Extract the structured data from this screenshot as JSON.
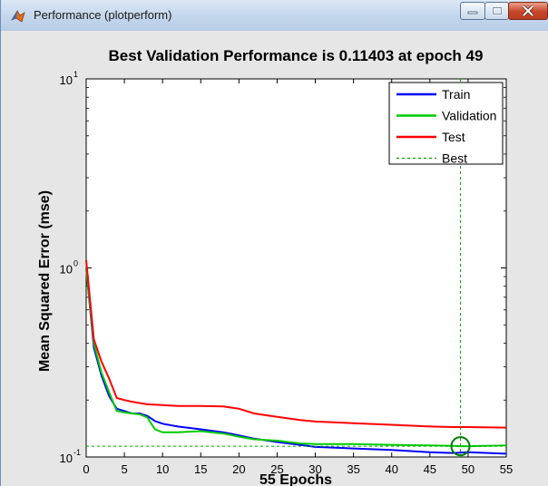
{
  "window": {
    "title": "Performance (plotperform)",
    "icon": "matlab-icon",
    "controls": [
      "minimize-icon",
      "maximize-icon",
      "close-icon"
    ]
  },
  "chart_data": {
    "type": "line",
    "title": "Best Validation Performance is 0.11403 at epoch 49",
    "xlabel": "55 Epochs",
    "ylabel": "Mean Squared Error  (mse)",
    "xlim": [
      0,
      55
    ],
    "ylim": [
      0.1,
      10
    ],
    "yscale": "log",
    "xticks": [
      "0",
      "5",
      "10",
      "15",
      "20",
      "25",
      "30",
      "35",
      "40",
      "45",
      "50",
      "55"
    ],
    "yticks": [
      {
        "base": "10",
        "exp": "-1",
        "value": 0.1
      },
      {
        "base": "10",
        "exp": "0",
        "value": 1
      },
      {
        "base": "10",
        "exp": "1",
        "value": 10
      }
    ],
    "grid": false,
    "legend_position": "top-right",
    "series": [
      {
        "name": "Train",
        "color": "#0000ff",
        "x": [
          0,
          1,
          2,
          3,
          4,
          5,
          6,
          7,
          8,
          9,
          10,
          12,
          15,
          18,
          20,
          22,
          25,
          28,
          30,
          35,
          40,
          45,
          48,
          50,
          55
        ],
        "y": [
          1.0,
          0.38,
          0.27,
          0.21,
          0.18,
          0.175,
          0.17,
          0.17,
          0.165,
          0.155,
          0.15,
          0.145,
          0.14,
          0.135,
          0.13,
          0.125,
          0.12,
          0.116,
          0.113,
          0.111,
          0.109,
          0.106,
          0.105,
          0.106,
          0.104
        ]
      },
      {
        "name": "Validation",
        "color": "#00cc00",
        "x": [
          0,
          1,
          2,
          3,
          4,
          5,
          6,
          7,
          8,
          9,
          10,
          12,
          15,
          18,
          20,
          22,
          25,
          28,
          30,
          35,
          40,
          45,
          48,
          49,
          50,
          55
        ],
        "y": [
          1.0,
          0.4,
          0.28,
          0.22,
          0.175,
          0.172,
          0.17,
          0.168,
          0.162,
          0.14,
          0.135,
          0.135,
          0.137,
          0.133,
          0.128,
          0.124,
          0.122,
          0.118,
          0.117,
          0.117,
          0.116,
          0.115,
          0.1145,
          0.11403,
          0.114,
          0.115
        ]
      },
      {
        "name": "Test",
        "color": "#ff0000",
        "x": [
          0,
          1,
          2,
          3,
          4,
          5,
          6,
          8,
          10,
          12,
          15,
          18,
          20,
          22,
          25,
          28,
          30,
          35,
          40,
          45,
          48,
          50,
          55
        ],
        "y": [
          1.1,
          0.42,
          0.32,
          0.26,
          0.205,
          0.2,
          0.196,
          0.19,
          0.188,
          0.186,
          0.186,
          0.185,
          0.18,
          0.17,
          0.163,
          0.157,
          0.154,
          0.151,
          0.148,
          0.145,
          0.144,
          0.144,
          0.143
        ]
      },
      {
        "name": "Best",
        "color": "#00aa00",
        "style": "dotted",
        "best_epoch": 49,
        "best_value": 0.11403
      }
    ]
  }
}
